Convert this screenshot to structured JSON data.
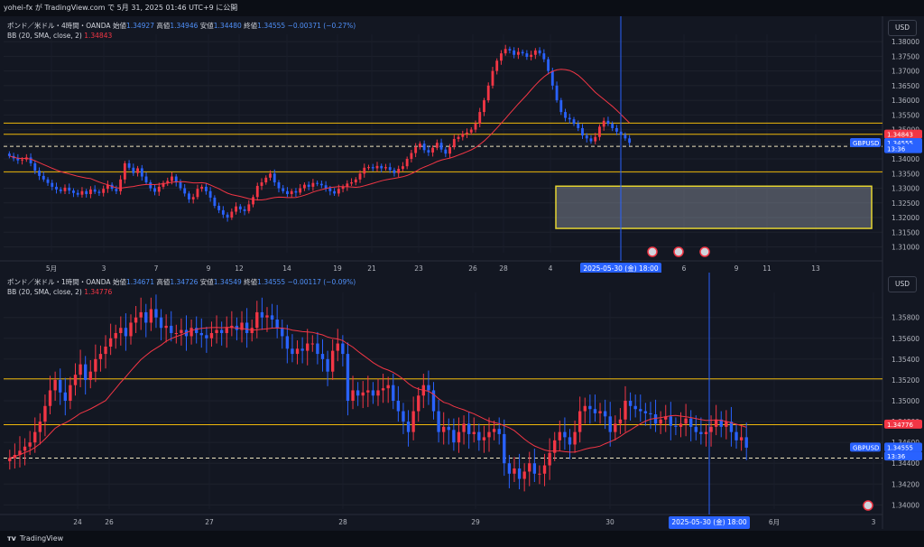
{
  "header": {
    "publish_text": "yohei-fx が TradingView.com で 5月 31, 2025 01:46 UTC+9 に公開"
  },
  "footer": {
    "brand": "TradingView"
  },
  "colors": {
    "up": "#f23645",
    "down": "#2962ff",
    "bb": "#f23645",
    "level": "#f0b90b",
    "green": "#4caf50",
    "zone_border": "#e5d431",
    "cursor": "#2962ff"
  },
  "chart_data": [
    {
      "type": "candlestick",
      "title": "ポンド／米ドル・4時間・OANDA",
      "ohlc_labels": {
        "o_label": "始値",
        "o": "1.34927",
        "h_label": "高値",
        "h": "1.34946",
        "l_label": "安値",
        "l": "1.34480",
        "c_label": "終値",
        "c": "1.34555",
        "chg": "−0.00371 (−0.27%)"
      },
      "indicator": {
        "label": "BB (20, SMA, close, 2)",
        "value": "1.34843"
      },
      "currency": "USD",
      "y_ticks": [
        "1.38000",
        "1.37500",
        "1.37000",
        "1.36500",
        "1.36000",
        "1.35500",
        "1.35000",
        "1.34500",
        "1.34000",
        "1.33500",
        "1.33000",
        "1.32500",
        "1.32000",
        "1.31500",
        "1.31000"
      ],
      "ylim": [
        1.308,
        1.3825
      ],
      "x_ticks": [
        "5月",
        "3",
        "7",
        "9",
        "12",
        "14",
        "19",
        "21",
        "23",
        "26",
        "28",
        "4",
        "6",
        "9",
        "11",
        "13"
      ],
      "cursor_label": "2025-05-30 (金)  18:00",
      "price_tags": [
        {
          "label": "1.34843",
          "price": 1.34843,
          "color": "#f23645"
        },
        {
          "label": "GBPUSD",
          "price": 1.34555,
          "color": "#2962ff"
        },
        {
          "label": "1.34555",
          "price": 1.34555,
          "color": "#2962ff"
        },
        {
          "label": "13:36",
          "price": 1.3435,
          "color": "#2962ff"
        }
      ],
      "levels": [
        1.3522,
        1.3484,
        1.3356
      ],
      "dashed_level": 1.3443,
      "zone": {
        "top": 1.3307,
        "bottom": 1.3163
      },
      "series": [
        {
          "name": "close",
          "values": [
            1.341,
            1.3402,
            1.3395,
            1.3398,
            1.3405,
            1.3385,
            1.336,
            1.3342,
            1.333,
            1.3318,
            1.3305,
            1.3296,
            1.329,
            1.3302,
            1.3292,
            1.3284,
            1.3278,
            1.329,
            1.328,
            1.3296,
            1.3288,
            1.3284,
            1.3298,
            1.3312,
            1.3298,
            1.329,
            1.333,
            1.3385,
            1.337,
            1.3352,
            1.3368,
            1.334,
            1.332,
            1.33,
            1.3288,
            1.3305,
            1.3318,
            1.3325,
            1.334,
            1.332,
            1.33,
            1.3282,
            1.3262,
            1.327,
            1.3298,
            1.3305,
            1.329,
            1.3268,
            1.324,
            1.3225,
            1.321,
            1.32,
            1.322,
            1.3238,
            1.3228,
            1.3222,
            1.3245,
            1.327,
            1.3308,
            1.332,
            1.3336,
            1.335,
            1.332,
            1.33,
            1.329,
            1.328,
            1.329,
            1.3285,
            1.33,
            1.3312,
            1.3305,
            1.3318,
            1.3315,
            1.331,
            1.33,
            1.329,
            1.3282,
            1.3298,
            1.3305,
            1.3316,
            1.332,
            1.333,
            1.335,
            1.337,
            1.3372,
            1.3368,
            1.3376,
            1.3368,
            1.3372,
            1.3362,
            1.3352,
            1.3366,
            1.3375,
            1.34,
            1.342,
            1.344,
            1.3452,
            1.343,
            1.3422,
            1.3438,
            1.3455,
            1.3432,
            1.3418,
            1.344,
            1.3468,
            1.3475,
            1.3485,
            1.349,
            1.35,
            1.352,
            1.356,
            1.36,
            1.365,
            1.37,
            1.3735,
            1.376,
            1.3775,
            1.377,
            1.3755,
            1.3765,
            1.376,
            1.3748,
            1.3755,
            1.377,
            1.376,
            1.374,
            1.37,
            1.365,
            1.36,
            1.356,
            1.354,
            1.3535,
            1.352,
            1.3505,
            1.348,
            1.347,
            1.346,
            1.3475,
            1.351,
            1.353,
            1.352,
            1.3505,
            1.3493,
            1.3482,
            1.347,
            1.3455
          ]
        }
      ]
    },
    {
      "type": "candlestick",
      "title": "ポンド／米ドル・1時間・OANDA",
      "ohlc_labels": {
        "o_label": "始値",
        "o": "1.34671",
        "h_label": "高値",
        "h": "1.34726",
        "l_label": "安値",
        "l": "1.34549",
        "c_label": "終値",
        "c": "1.34555",
        "chg": "−0.00117 (−0.09%)"
      },
      "indicator": {
        "label": "BB (20, SMA, close, 2)",
        "value": "1.34776"
      },
      "currency": "USD",
      "y_ticks": [
        "1.35800",
        "1.35600",
        "1.35400",
        "1.35200",
        "1.35000",
        "1.34800",
        "1.34600",
        "1.34400",
        "1.34200",
        "1.34000"
      ],
      "ylim": [
        1.3396,
        1.3604
      ],
      "x_ticks": [
        "24",
        "26",
        "27",
        "28",
        "29",
        "30",
        "6月",
        "3"
      ],
      "cursor_label": "2025-05-30 (金)  18:00",
      "price_tags": [
        {
          "label": "1.34776",
          "price": 1.34776,
          "color": "#f23645"
        },
        {
          "label": "GBPUSD",
          "price": 1.34555,
          "color": "#2962ff"
        },
        {
          "label": "1.34555",
          "price": 1.34555,
          "color": "#2962ff"
        },
        {
          "label": "13:36",
          "price": 1.3447,
          "color": "#2962ff"
        }
      ],
      "levels": [
        1.3521,
        1.3477
      ],
      "dashed_level": 1.3445,
      "series": [
        {
          "name": "close",
          "values": [
            1.3445,
            1.3448,
            1.3452,
            1.3456,
            1.346,
            1.347,
            1.348,
            1.3495,
            1.351,
            1.352,
            1.3508,
            1.35,
            1.3515,
            1.3525,
            1.3535,
            1.352,
            1.3528,
            1.354,
            1.3545,
            1.3552,
            1.356,
            1.3565,
            1.357,
            1.3562,
            1.3575,
            1.358,
            1.3585,
            1.3575,
            1.3588,
            1.358,
            1.357,
            1.3572,
            1.3565,
            1.3565,
            1.3568,
            1.3562,
            1.357,
            1.3565,
            1.3563,
            1.356,
            1.3565,
            1.3568,
            1.3565,
            1.357,
            1.3572,
            1.3568,
            1.3575,
            1.3565,
            1.357,
            1.3585,
            1.358,
            1.3582,
            1.3578,
            1.357,
            1.3562,
            1.355,
            1.3545,
            1.355,
            1.3548,
            1.3555,
            1.3555,
            1.3545,
            1.354,
            1.3528,
            1.3548,
            1.3555,
            1.3545,
            1.35,
            1.351,
            1.3505,
            1.3508,
            1.351,
            1.3505,
            1.351,
            1.3512,
            1.3515,
            1.35,
            1.349,
            1.348,
            1.347,
            1.349,
            1.3505,
            1.3515,
            1.351,
            1.349,
            1.347,
            1.3475,
            1.3472,
            1.346,
            1.347,
            1.3478,
            1.3468,
            1.347,
            1.3462,
            1.3465,
            1.347,
            1.3473,
            1.3468,
            1.344,
            1.343,
            1.3435,
            1.3425,
            1.3432,
            1.344,
            1.343,
            1.343,
            1.3438,
            1.345,
            1.3462,
            1.347,
            1.3465,
            1.3458,
            1.347,
            1.349,
            1.3495,
            1.3492,
            1.3488,
            1.349,
            1.3485,
            1.347,
            1.3478,
            1.3482,
            1.35,
            1.3495,
            1.3492,
            1.349,
            1.3488,
            1.3487,
            1.3478,
            1.3482,
            1.3485,
            1.3476,
            1.3475,
            1.3478,
            1.3483,
            1.3475,
            1.347,
            1.3468,
            1.347,
            1.3475,
            1.3482,
            1.3475,
            1.348,
            1.347,
            1.3462,
            1.3465,
            1.3455
          ]
        }
      ]
    }
  ]
}
